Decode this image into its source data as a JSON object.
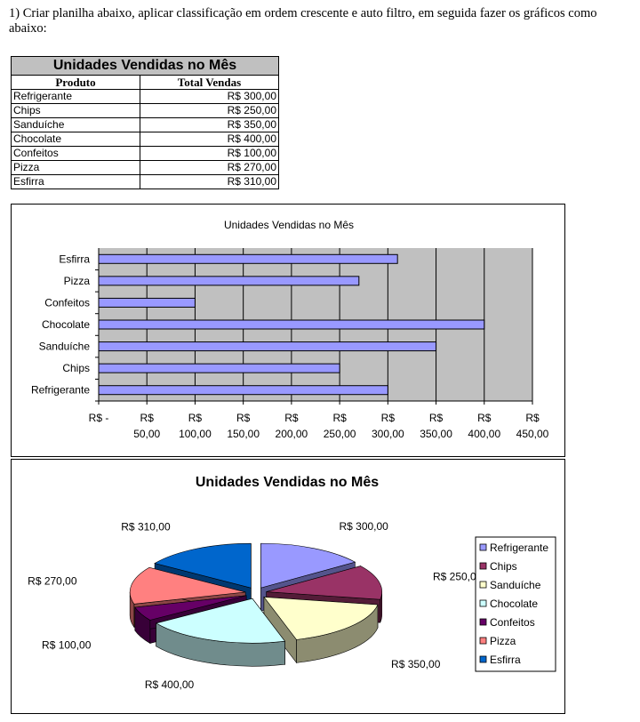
{
  "document": {
    "instruction": "1) Criar planilha abaixo, aplicar classificação em ordem crescente e auto filtro, em seguida fazer os gráficos como abaixo:"
  },
  "table": {
    "title": "Unidades Vendidas no Mês",
    "headers": [
      "Produto",
      "Total Vendas"
    ],
    "rows": [
      {
        "produto": "Refrigerante",
        "total": "R$ 300,00"
      },
      {
        "produto": "Chips",
        "total": "R$ 250,00"
      },
      {
        "produto": "Sanduíche",
        "total": "R$ 350,00"
      },
      {
        "produto": "Chocolate",
        "total": "R$ 400,00"
      },
      {
        "produto": "Confeitos",
        "total": "R$ 100,00"
      },
      {
        "produto": "Pizza",
        "total": "R$ 270,00"
      },
      {
        "produto": "Esfirra",
        "total": "R$ 310,00"
      }
    ]
  },
  "chart_data": [
    {
      "type": "bar",
      "orientation": "horizontal",
      "title": "Unidades Vendidas no Mês",
      "categories": [
        "Refrigerante",
        "Chips",
        "Sanduíche",
        "Chocolate",
        "Confeitos",
        "Pizza",
        "Esfirra"
      ],
      "values": [
        300,
        250,
        350,
        400,
        100,
        270,
        310
      ],
      "xlim": [
        0,
        450
      ],
      "tick_values": [
        0,
        50,
        100,
        150,
        200,
        250,
        300,
        350,
        400,
        450
      ],
      "tick_labels": [
        [
          "R$ -"
        ],
        [
          "R$",
          "50,00"
        ],
        [
          "R$",
          "100,00"
        ],
        [
          "R$",
          "150,00"
        ],
        [
          "R$",
          "200,00"
        ],
        [
          "R$",
          "250,00"
        ],
        [
          "R$",
          "300,00"
        ],
        [
          "R$",
          "350,00"
        ],
        [
          "R$",
          "400,00"
        ],
        [
          "R$",
          "450,00"
        ]
      ],
      "grid": true,
      "plot_background": "#c0c0c0",
      "bar_color": "#9999ff",
      "legend": "none"
    },
    {
      "type": "pie",
      "style": "3d-exploded",
      "title": "Unidades Vendidas no Mês",
      "categories": [
        "Refrigerante",
        "Chips",
        "Sanduíche",
        "Chocolate",
        "Confeitos",
        "Pizza",
        "Esfirra"
      ],
      "values": [
        300,
        250,
        350,
        400,
        100,
        270,
        310
      ],
      "data_labels": [
        "R$ 300,00",
        "R$ 250,00",
        "R$ 350,00",
        "R$ 400,00",
        "R$ 100,00",
        "R$ 270,00",
        "R$ 310,00"
      ],
      "colors": [
        "#9999ff",
        "#993366",
        "#ffffcc",
        "#ccffff",
        "#660066",
        "#ff8080",
        "#0066cc"
      ],
      "legend": "right"
    }
  ]
}
